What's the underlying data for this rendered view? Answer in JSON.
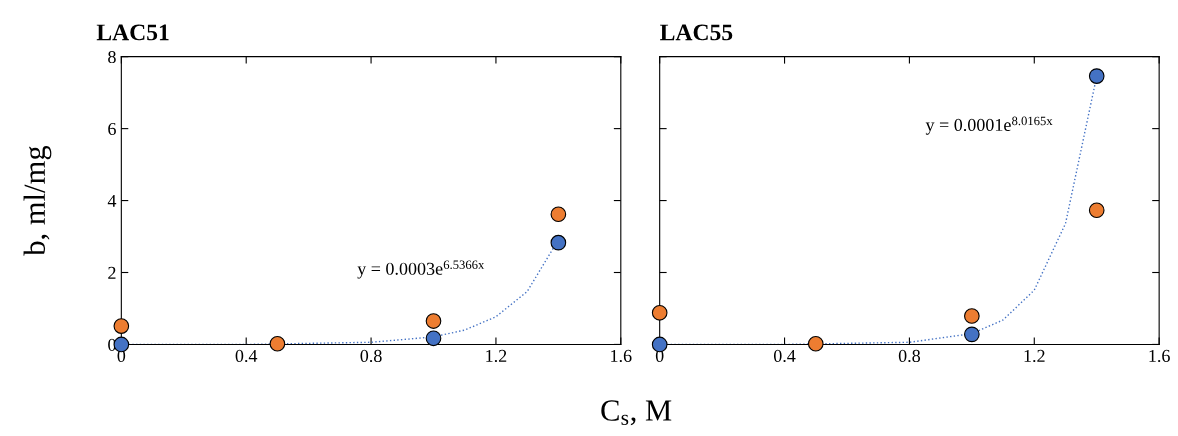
{
  "chart_data": [
    {
      "type": "scatter",
      "title": "LAC51",
      "xlabel": "C$_{s}$, M",
      "ylabel": "b, ml/mg",
      "xlim": [
        0,
        1.6
      ],
      "xticks": [
        0,
        0.4,
        0.8,
        1.2,
        1.6
      ],
      "ylim": [
        0,
        8
      ],
      "yticks": [
        0,
        2,
        4,
        6,
        8
      ],
      "x": [
        0,
        0.5,
        1.0,
        1.4
      ],
      "marker": "circle",
      "grid": false,
      "legend": false,
      "series": [
        {
          "color": "#4472c4",
          "values": [
            0,
            null,
            0.17,
            2.83
          ]
        },
        {
          "color": "#ed7d31",
          "values": [
            0.51,
            0.02,
            0.65,
            3.62
          ]
        },
        {
          "type": "line",
          "line_style": "dotted",
          "marker": "none",
          "color": "#4472c4",
          "x": [
            0,
            0.4,
            0.8,
            1.0,
            1.1,
            1.2,
            1.3,
            1.4
          ],
          "values": [
            0,
            0,
            0.06,
            0.21,
            0.4,
            0.77,
            1.47,
            2.91
          ]
        }
      ],
      "annotations": [
        "y = 0.0003e$^{6.5366x}$"
      ]
    },
    {
      "type": "scatter",
      "title": "LAC55",
      "xlim": [
        0,
        1.6
      ],
      "xticks": [
        0,
        0.4,
        0.8,
        1.2,
        1.6
      ],
      "ylim": [
        0,
        8
      ],
      "yticks": [
        0,
        2,
        4,
        6,
        8
      ],
      "tick_labels": "x",
      "x": [
        0,
        0.5,
        1.0,
        1.4
      ],
      "marker": "circle",
      "grid": false,
      "legend": false,
      "series": [
        {
          "color": "#4472c4",
          "values": [
            0,
            null,
            0.28,
            7.46
          ]
        },
        {
          "color": "#ed7d31",
          "values": [
            0.88,
            0.02,
            0.79,
            3.73
          ]
        },
        {
          "type": "line",
          "line_style": "dotted",
          "marker": "none",
          "color": "#4472c4",
          "x": [
            0,
            0.4,
            0.8,
            1.0,
            1.1,
            1.2,
            1.3,
            1.4
          ],
          "values": [
            0,
            0,
            0.06,
            0.3,
            0.68,
            1.51,
            3.36,
            7.46
          ]
        }
      ],
      "annotations": [
        "y = 0.0001e$^{8.0165x}$"
      ]
    }
  ]
}
